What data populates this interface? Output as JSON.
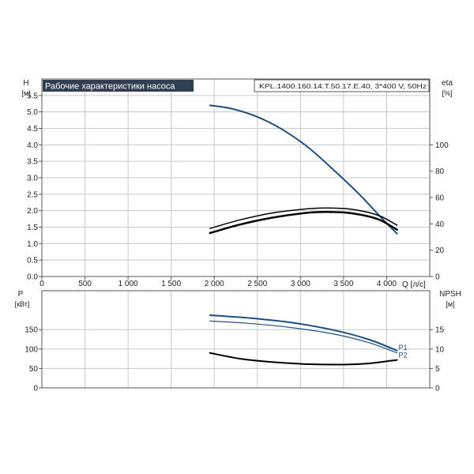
{
  "title_box": "Рабочие характеристики насоса",
  "model": "KPL.1400.160.14.T.50.17.E.40, 3*400 V, 50Hz",
  "colors": {
    "frame": "#555555",
    "grid": "#c8c8c8",
    "title_bg": "#2f3e52",
    "title_text": "#ffffff",
    "head_curve": "#1f4e80",
    "power_curve": "#1f4e80",
    "eta_curve": "#000000",
    "npsh_curve": "#000000"
  },
  "chart_data": [
    {
      "type": "line",
      "panel": "top",
      "xlabel": "Q [л/с]",
      "xlim": [
        0,
        4500
      ],
      "x_ticks": [
        "0",
        "500",
        "1 000",
        "1 500",
        "2 000",
        "2 500",
        "3 000",
        "3 500",
        "4 000"
      ],
      "left_axis": {
        "label": "H",
        "unit": "[м]",
        "ylim": [
          0,
          6.0
        ],
        "ticks": [
          "0.0",
          "0.5",
          "1.0",
          "1.5",
          "2.0",
          "2.5",
          "3.0",
          "3.5",
          "4.0",
          "4.5",
          "5.0",
          "5.5"
        ]
      },
      "right_axis": {
        "label": "eta",
        "unit": "[%]",
        "ylim": [
          0,
          150
        ],
        "ticks": [
          "0",
          "20",
          "40",
          "60",
          "80",
          "100"
        ]
      },
      "grid": true,
      "series": [
        {
          "axis": "left",
          "x": [
            1950,
            2200,
            2500,
            2800,
            3100,
            3400,
            3700,
            3950,
            4120
          ],
          "y": [
            5.2,
            5.1,
            4.85,
            4.45,
            3.9,
            3.2,
            2.45,
            1.75,
            1.3
          ]
        },
        {
          "axis": "right",
          "x": [
            1950,
            2300,
            2700,
            3100,
            3350,
            3600,
            3900,
            4120
          ],
          "y": [
            36.5,
            43.0,
            48.5,
            51.5,
            52.0,
            51.0,
            46.5,
            39.0
          ]
        },
        {
          "axis": "right",
          "x": [
            1950,
            2300,
            2700,
            3100,
            3350,
            3600,
            3900,
            4120
          ],
          "y": [
            33.0,
            39.5,
            45.0,
            48.5,
            49.0,
            48.0,
            43.5,
            35.5
          ]
        }
      ]
    },
    {
      "type": "line",
      "panel": "bottom",
      "xlim": [
        0,
        4500
      ],
      "left_axis": {
        "label": "P",
        "unit": "[кВт]",
        "ylim": [
          0,
          250
        ],
        "ticks": [
          "0",
          "50",
          "100",
          "150"
        ]
      },
      "right_axis": {
        "label": "NPSH",
        "unit": "[м]",
        "ylim": [
          0,
          25
        ],
        "ticks": [
          "0",
          "5",
          "10",
          "15"
        ]
      },
      "grid": true,
      "series": [
        {
          "name": "P1",
          "axis": "left",
          "x": [
            1950,
            2400,
            2900,
            3400,
            3800,
            4120
          ],
          "y": [
            187,
            180,
            168,
            148,
            124,
            96
          ]
        },
        {
          "name": "P2",
          "axis": "left",
          "x": [
            1950,
            2400,
            2900,
            3400,
            3800,
            4120
          ],
          "y": [
            172,
            166,
            155,
            138,
            116,
            90
          ]
        },
        {
          "axis": "right",
          "x": [
            1950,
            2300,
            2700,
            3100,
            3500,
            3800,
            4120
          ],
          "y": [
            9.0,
            7.5,
            6.6,
            6.1,
            6.0,
            6.3,
            7.2
          ]
        }
      ]
    }
  ]
}
